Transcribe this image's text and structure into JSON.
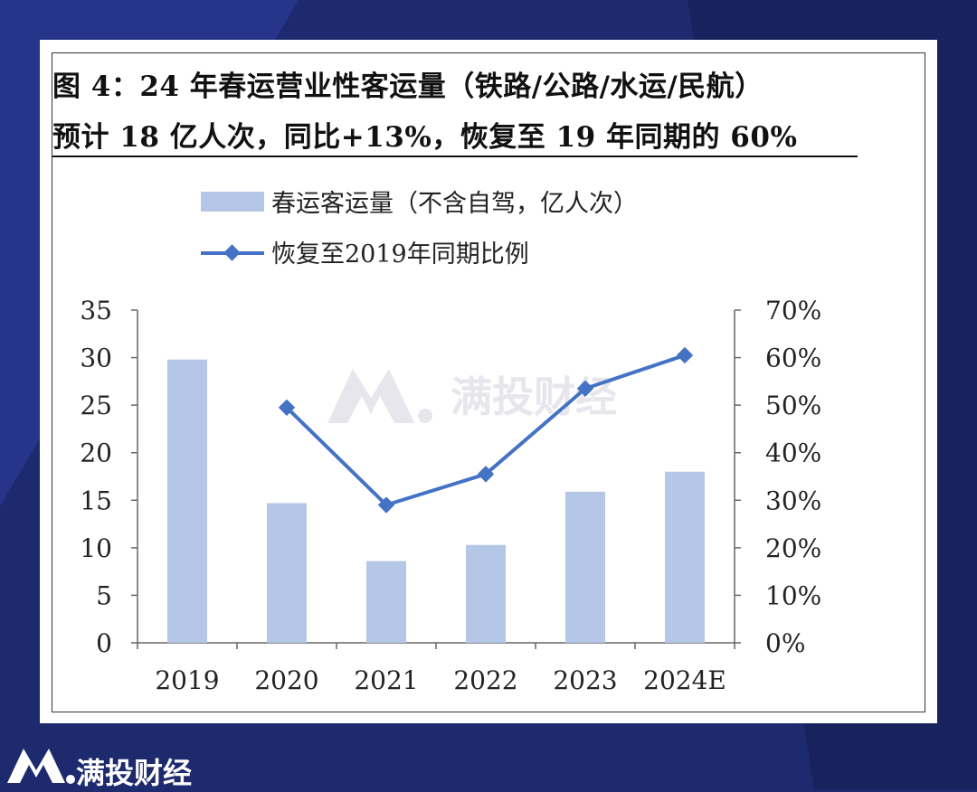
{
  "title": {
    "line1": "图 4：24 年春运营业性客运量（铁路/公路/水运/民航）",
    "line2": "预计 18 亿人次，同比+13%，恢复至 19 年同期的 60%"
  },
  "watermark": "满投财经",
  "footer": {
    "brand": "满投财经"
  },
  "colors": {
    "background": "#1e2a6e",
    "bar": "#b4c7e7",
    "line": "#4472c4",
    "watermark": "#e6e6ec"
  },
  "chart_data": {
    "type": "bar",
    "categories": [
      "2019",
      "2020",
      "2021",
      "2022",
      "2023",
      "2024E"
    ],
    "series": [
      {
        "name": "春运客运量（不含自驾，亿人次）",
        "type": "bar",
        "axis": "left",
        "values": [
          29.8,
          14.7,
          8.6,
          10.3,
          15.9,
          18.0
        ]
      },
      {
        "name": "恢复至2019年同期比例",
        "type": "line",
        "axis": "right",
        "values": [
          null,
          0.495,
          0.29,
          0.355,
          0.535,
          0.605
        ]
      }
    ],
    "y_left": {
      "min": 0,
      "max": 35,
      "ticks": [
        "0",
        "5",
        "10",
        "15",
        "20",
        "25",
        "30",
        "35"
      ]
    },
    "y_right": {
      "min": 0,
      "max": 0.7,
      "ticks": [
        "0%",
        "10%",
        "20%",
        "30%",
        "40%",
        "50%",
        "60%",
        "70%"
      ]
    },
    "legend": "top-left",
    "grid": false
  }
}
